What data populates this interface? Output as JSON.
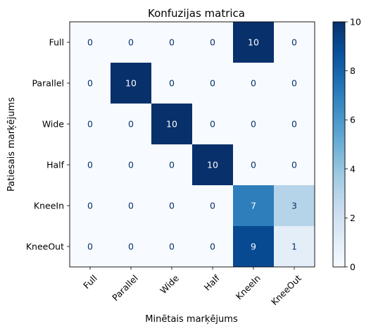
{
  "chart_data": {
    "type": "heatmap",
    "title": "Konfuzijas matrica",
    "xlabel": "Minētais marķējums",
    "ylabel": "Patiesais marķējums",
    "x_categories": [
      "Full",
      "Parallel",
      "Wide",
      "Half",
      "KneeIn",
      "KneeOut"
    ],
    "y_categories": [
      "Full",
      "Parallel",
      "Wide",
      "Half",
      "KneeIn",
      "KneeOut"
    ],
    "values": [
      [
        0,
        0,
        0,
        0,
        10,
        0
      ],
      [
        0,
        10,
        0,
        0,
        0,
        0
      ],
      [
        0,
        0,
        10,
        0,
        0,
        0
      ],
      [
        0,
        0,
        0,
        10,
        0,
        0
      ],
      [
        0,
        0,
        0,
        0,
        7,
        3
      ],
      [
        0,
        0,
        0,
        0,
        9,
        1
      ]
    ],
    "colormap": "Blues",
    "vmin": 0,
    "vmax": 10,
    "colorbar_ticks": [
      0,
      2,
      4,
      6,
      8,
      10
    ],
    "x_tick_rotation_deg": 45
  }
}
